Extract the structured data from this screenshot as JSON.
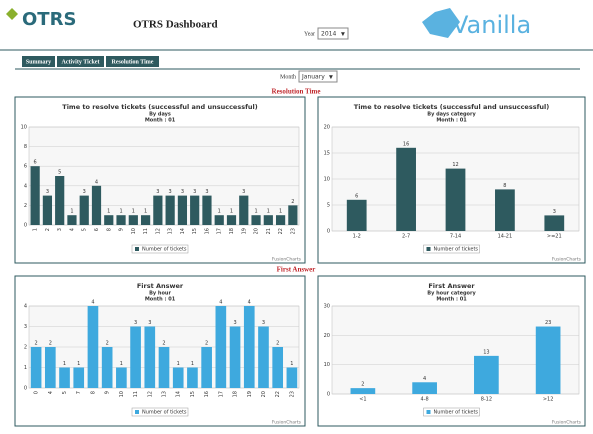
{
  "header": {
    "logo": "OTRS",
    "title": "OTRS Dashboard",
    "year_label": "Year",
    "year": "2014",
    "brand": "Vanilla"
  },
  "tabs": [
    "Summary",
    "Activity Ticket",
    "Resolution Time"
  ],
  "month_label": "Month",
  "month": "January",
  "sections": [
    "Resolution Time",
    "First Answer"
  ],
  "chart_data": [
    {
      "type": "bar",
      "title": "Time to resolve tickets (successful and unsuccessful)",
      "subtitle": "By days",
      "period": "Month : 01",
      "categories": [
        "1",
        "2",
        "3",
        "4",
        "5",
        "6",
        "8",
        "9",
        "10",
        "11",
        "12",
        "13",
        "14",
        "15",
        "16",
        "17",
        "18",
        "19",
        "20",
        "21",
        "22",
        "23"
      ],
      "series": [
        {
          "name": "Number of tickets",
          "color": "#2e5a5f",
          "values": [
            6,
            3,
            5,
            1,
            3,
            4,
            1,
            1,
            1,
            1,
            3,
            3,
            3,
            3,
            3,
            1,
            1,
            3,
            1,
            1,
            1,
            2
          ]
        }
      ],
      "ylim": [
        0,
        10
      ],
      "yticks": [
        0,
        2,
        4,
        6,
        8,
        10
      ],
      "grid": true,
      "credit": "FusionCharts"
    },
    {
      "type": "bar",
      "title": "Time to resolve tickets (successful and unsuccessful)",
      "subtitle": "By days category",
      "period": "Month : 01",
      "categories": [
        "1-2",
        "2-7",
        "7-14",
        "14-21",
        ">=21"
      ],
      "series": [
        {
          "name": "Number of tickets",
          "color": "#2e5a5f",
          "values": [
            6,
            16,
            12,
            8,
            3
          ]
        }
      ],
      "ylim": [
        0,
        20
      ],
      "yticks": [
        0,
        5,
        10,
        15,
        20
      ],
      "grid": true,
      "credit": "FusionCharts"
    },
    {
      "type": "bar",
      "title": "First Answer",
      "subtitle": "By hour",
      "period": "Month : 01",
      "categories": [
        "0",
        "4",
        "5",
        "7",
        "8",
        "9",
        "10",
        "11",
        "12",
        "13",
        "14",
        "15",
        "16",
        "17",
        "18",
        "19",
        "20",
        "22",
        "23"
      ],
      "series": [
        {
          "name": "Number of tickets",
          "color": "#3ea9de",
          "values": [
            2,
            2,
            1,
            1,
            4,
            2,
            1,
            3,
            3,
            2,
            1,
            1,
            2,
            4,
            3,
            4,
            3,
            2,
            1
          ]
        }
      ],
      "ylim": [
        0,
        4
      ],
      "yticks": [
        0,
        1,
        2,
        3,
        4
      ],
      "grid": true,
      "credit": "FusionCharts"
    },
    {
      "type": "bar",
      "title": "First Answer",
      "subtitle": "By hour category",
      "period": "Month : 01",
      "categories": [
        "<1",
        "4-8",
        "8-12",
        ">12"
      ],
      "series": [
        {
          "name": "Number of tickets",
          "color": "#3ea9de",
          "values": [
            2,
            4,
            13,
            23
          ]
        }
      ],
      "ylim": [
        0,
        30
      ],
      "yticks": [
        0,
        10,
        20,
        30
      ],
      "grid": true,
      "credit": "FusionCharts"
    }
  ]
}
